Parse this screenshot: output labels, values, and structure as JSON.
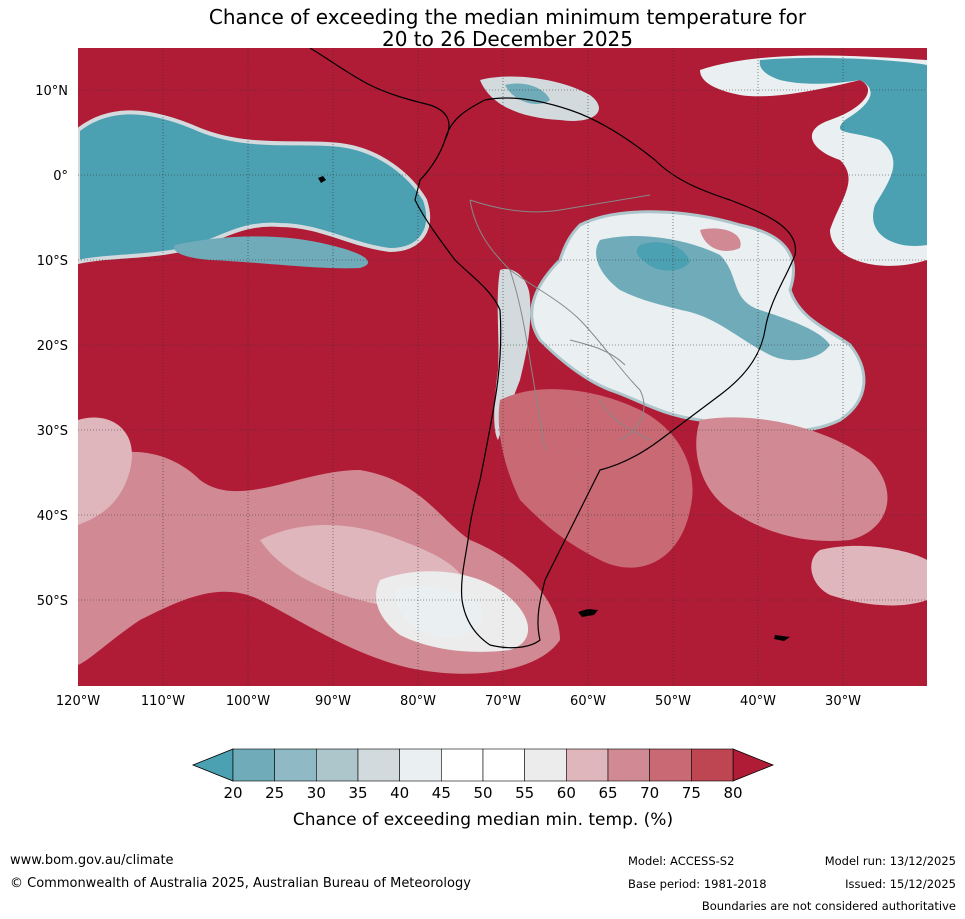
{
  "title": {
    "line1": "Chance of exceeding the median minimum temperature for",
    "line2": "20 to 26 December 2025"
  },
  "map": {
    "lon_labels": [
      "120°W",
      "110°W",
      "100°W",
      "90°W",
      "80°W",
      "70°W",
      "60°W",
      "50°W",
      "40°W",
      "30°W"
    ],
    "lat_labels": [
      "10°N",
      "0°",
      "10°S",
      "20°S",
      "30°S",
      "40°S",
      "50°S"
    ]
  },
  "colorbar": {
    "ticks": [
      "20",
      "25",
      "30",
      "35",
      "40",
      "45",
      "50",
      "55",
      "60",
      "65",
      "70",
      "75",
      "80"
    ],
    "colors": [
      "#4ba0b1",
      "#6fabb9",
      "#8fbac5",
      "#adc6cb",
      "#d2dadd",
      "#eaf0f2",
      "#ffffff",
      "#ffffff",
      "#ececec",
      "#e0b6bd",
      "#d18a93",
      "#c96973",
      "#be4653",
      "#b01c36"
    ],
    "label": "Chance of exceeding median min. temp. (%)"
  },
  "footer": {
    "website": "www.bom.gov.au/climate",
    "copyright": "© Commonwealth of Australia 2025, Australian Bureau of Meteorology",
    "model": "Model: ACCESS-S2",
    "base_period": "Base period: 1981-2018",
    "model_run": "Model run: 13/12/2025",
    "issued": "Issued: 15/12/2025",
    "disclaimer": "Boundaries are not considered authoritative"
  }
}
